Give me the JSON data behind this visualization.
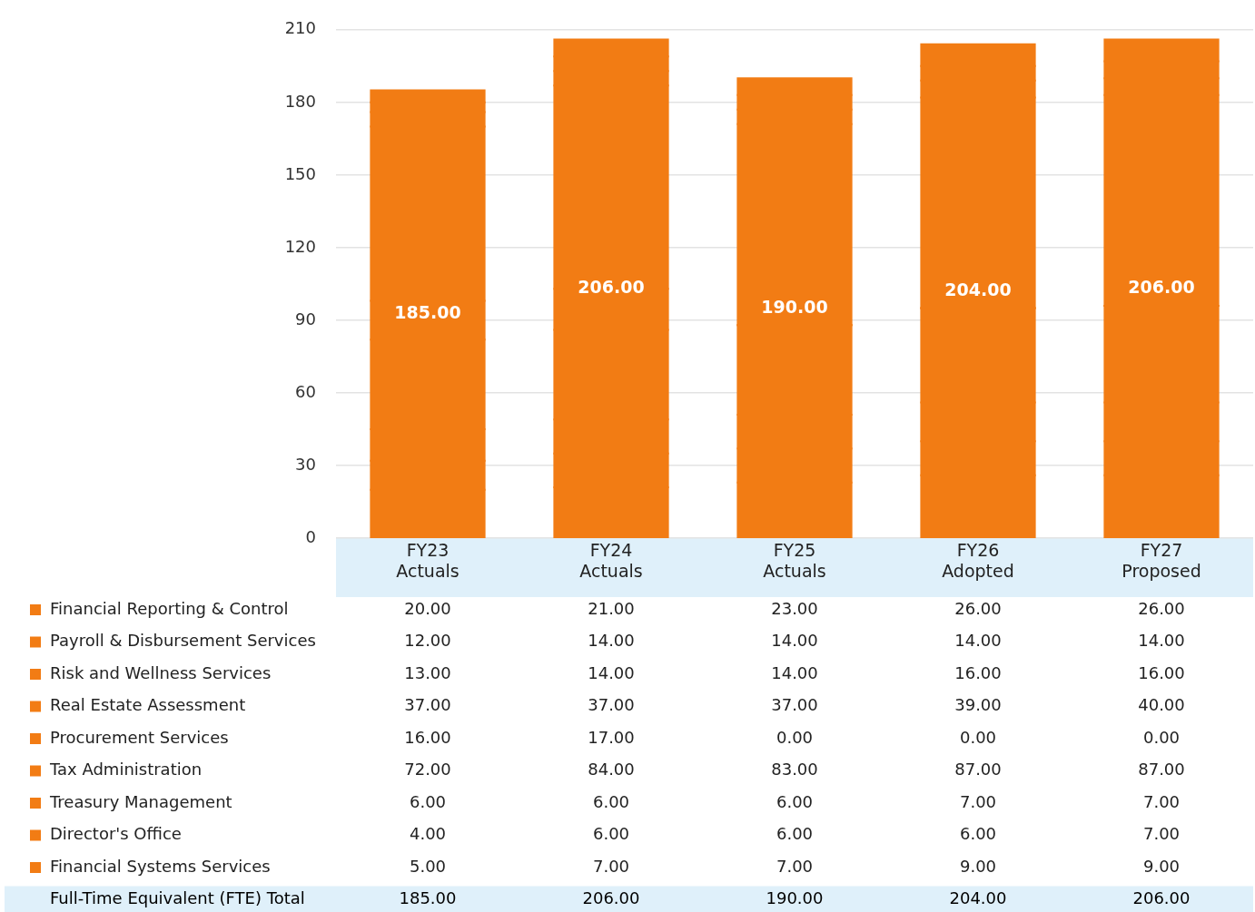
{
  "chart_data": {
    "type": "bar",
    "stacked": true,
    "categories": [
      "FY23 Actuals",
      "FY24 Actuals",
      "FY25 Actuals",
      "FY26 Adopted",
      "FY27 Proposed"
    ],
    "series": [
      {
        "name": "Financial Reporting & Control",
        "color": "#f27c14",
        "values": [
          20,
          21,
          23,
          26,
          26
        ],
        "value_labels": [
          "20.00",
          "21.00",
          "23.00",
          "26.00",
          "26.00"
        ]
      },
      {
        "name": "Payroll & Disbursement Services",
        "color": "#f27c14",
        "values": [
          12,
          14,
          14,
          14,
          14
        ],
        "value_labels": [
          "12.00",
          "14.00",
          "14.00",
          "14.00",
          "14.00"
        ]
      },
      {
        "name": "Risk and Wellness Services",
        "color": "#f27c14",
        "values": [
          13,
          14,
          14,
          16,
          16
        ],
        "value_labels": [
          "13.00",
          "14.00",
          "14.00",
          "16.00",
          "16.00"
        ]
      },
      {
        "name": "Real Estate Assessment",
        "color": "#f27c14",
        "values": [
          37,
          37,
          37,
          39,
          40
        ],
        "value_labels": [
          "37.00",
          "37.00",
          "37.00",
          "39.00",
          "40.00"
        ]
      },
      {
        "name": "Procurement Services",
        "color": "#f27c14",
        "values": [
          16,
          17,
          0,
          0,
          0
        ],
        "value_labels": [
          "16.00",
          "17.00",
          "0.00",
          "0.00",
          "0.00"
        ]
      },
      {
        "name": "Tax Administration",
        "color": "#f27c14",
        "values": [
          72,
          84,
          83,
          87,
          87
        ],
        "value_labels": [
          "72.00",
          "84.00",
          "83.00",
          "87.00",
          "87.00"
        ]
      },
      {
        "name": "Treasury Management",
        "color": "#f27c14",
        "values": [
          6,
          6,
          6,
          7,
          7
        ],
        "value_labels": [
          "6.00",
          "6.00",
          "6.00",
          "7.00",
          "7.00"
        ]
      },
      {
        "name": "Director's Office",
        "color": "#f27c14",
        "values": [
          4,
          6,
          6,
          6,
          7
        ],
        "value_labels": [
          "4.00",
          "6.00",
          "6.00",
          "6.00",
          "7.00"
        ]
      },
      {
        "name": "Financial Systems Services",
        "color": "#f27c14",
        "values": [
          5,
          7,
          7,
          9,
          9
        ],
        "value_labels": [
          "5.00",
          "7.00",
          "7.00",
          "9.00",
          "9.00"
        ]
      }
    ],
    "totals": [
      "185.00",
      "206.00",
      "190.00",
      "204.00",
      "206.00"
    ],
    "annotations": [
      "Full-Time Equivalent (FTE) Total"
    ],
    "ylim": [
      0,
      210
    ],
    "yticks": [
      0,
      30,
      60,
      90,
      120,
      150,
      180,
      210
    ],
    "grid": "y",
    "legend": "bottom left"
  }
}
